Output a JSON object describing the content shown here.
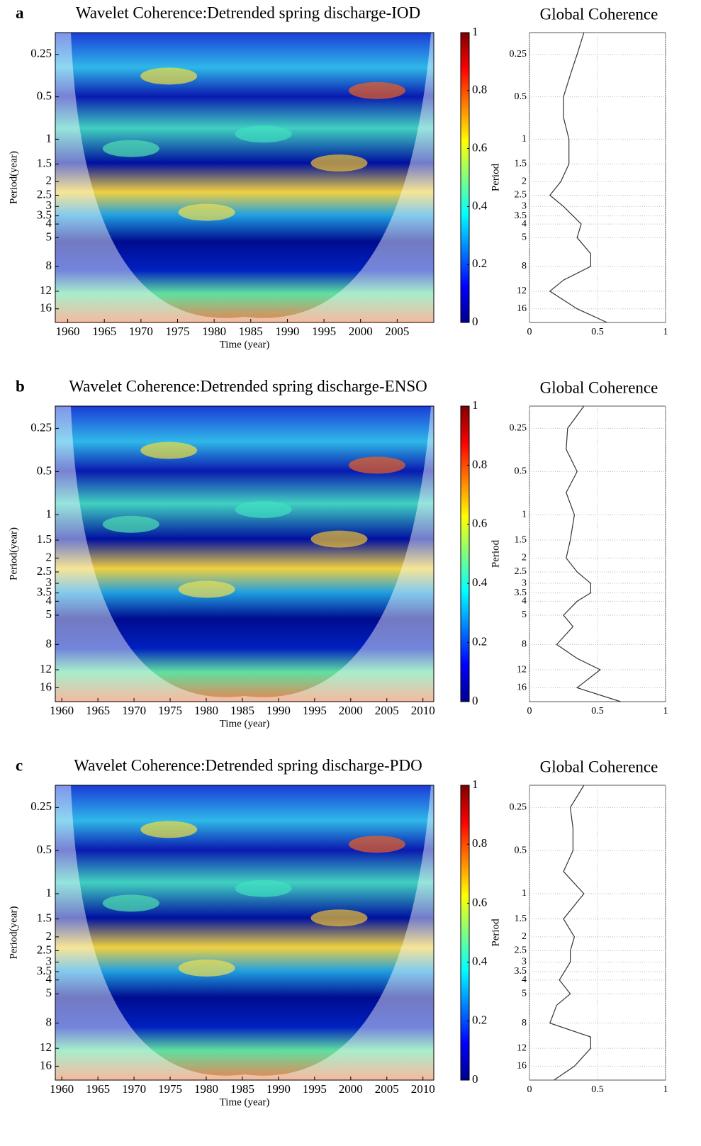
{
  "chart_data": [
    {
      "type": "heatmap",
      "panel_label": "a",
      "title": "Wavelet Coherence:Detrended spring discharge-IOD",
      "xlabel": "Time (year)",
      "ylabel": "Period(year)",
      "log_y": true,
      "colormap": "jet",
      "xlim": [
        1958.3,
        2010
      ],
      "xticks": [
        1960,
        1965,
        1970,
        1975,
        1980,
        1985,
        1990,
        1995,
        2000,
        2005
      ],
      "ylim": [
        0.175,
        20
      ],
      "yticks": [
        0.25,
        0.5,
        1,
        1.5,
        2,
        2.5,
        3,
        3.5,
        4,
        5,
        8,
        12,
        16
      ],
      "clim": [
        0,
        1
      ],
      "cticks": [
        0,
        0.2,
        0.4,
        0.6,
        0.8,
        1
      ]
    },
    {
      "type": "line",
      "title": "Global Coherence",
      "ylabel": "Period",
      "log_y": true,
      "grid": true,
      "color": "#333333",
      "xlim": [
        0,
        1
      ],
      "xticks": [
        0,
        0.5,
        1
      ],
      "ylim": [
        0.175,
        20
      ],
      "yticks": [
        0.25,
        0.5,
        1,
        1.5,
        2,
        2.5,
        3,
        3.5,
        4,
        5,
        8,
        12,
        16
      ],
      "y": [
        0.175,
        0.25,
        0.35,
        0.5,
        0.7,
        1,
        1.5,
        2,
        2.5,
        3,
        4,
        5,
        6.5,
        8,
        10,
        12,
        16,
        20
      ],
      "values": [
        0.4,
        0.35,
        0.3,
        0.25,
        0.25,
        0.29,
        0.29,
        0.23,
        0.15,
        0.25,
        0.38,
        0.35,
        0.45,
        0.45,
        0.25,
        0.15,
        0.35,
        0.57
      ]
    },
    {
      "type": "heatmap",
      "panel_label": "b",
      "title": "Wavelet Coherence:Detrended spring discharge-ENSO",
      "xlabel": "Time (year)",
      "ylabel": "Period(year)",
      "log_y": true,
      "colormap": "jet",
      "xlim": [
        1959.1,
        2011.5
      ],
      "xticks": [
        1960,
        1965,
        1970,
        1975,
        1980,
        1985,
        1990,
        1995,
        2000,
        2005,
        2010
      ],
      "ylim": [
        0.175,
        20
      ],
      "yticks": [
        0.25,
        0.5,
        1,
        1.5,
        2,
        2.5,
        3,
        3.5,
        4,
        5,
        8,
        12,
        16
      ],
      "clim": [
        0,
        1
      ],
      "cticks": [
        0,
        0.2,
        0.4,
        0.6,
        0.8,
        1
      ]
    },
    {
      "type": "line",
      "title": "Global Coherence",
      "ylabel": "Period",
      "log_y": true,
      "grid": true,
      "color": "#333333",
      "xlim": [
        0,
        1
      ],
      "xticks": [
        0,
        0.5,
        1
      ],
      "ylim": [
        0.175,
        20
      ],
      "yticks": [
        0.25,
        0.5,
        1,
        1.5,
        2,
        2.5,
        3,
        3.5,
        4,
        5,
        8,
        12,
        16
      ],
      "y": [
        0.175,
        0.25,
        0.35,
        0.5,
        0.7,
        1,
        1.5,
        2,
        2.5,
        3,
        3.5,
        4,
        5,
        6,
        8,
        10,
        12,
        16,
        20
      ],
      "values": [
        0.4,
        0.28,
        0.27,
        0.35,
        0.27,
        0.33,
        0.3,
        0.27,
        0.35,
        0.45,
        0.45,
        0.35,
        0.25,
        0.32,
        0.2,
        0.35,
        0.52,
        0.35,
        0.67
      ]
    },
    {
      "type": "heatmap",
      "panel_label": "c",
      "title": "Wavelet Coherence:Detrended spring discharge-PDO",
      "xlabel": "Time (year)",
      "ylabel": "Period(year)",
      "log_y": true,
      "colormap": "jet",
      "xlim": [
        1959.1,
        2011.5
      ],
      "xticks": [
        1960,
        1965,
        1970,
        1975,
        1980,
        1985,
        1990,
        1995,
        2000,
        2005,
        2010
      ],
      "ylim": [
        0.175,
        20
      ],
      "yticks": [
        0.25,
        0.5,
        1,
        1.5,
        2,
        2.5,
        3,
        3.5,
        4,
        5,
        8,
        12,
        16
      ],
      "clim": [
        0,
        1
      ],
      "cticks": [
        0,
        0.2,
        0.4,
        0.6,
        0.8,
        1
      ]
    },
    {
      "type": "line",
      "title": "Global Coherence",
      "ylabel": "Period",
      "log_y": true,
      "grid": true,
      "color": "#333333",
      "xlim": [
        0,
        1
      ],
      "xticks": [
        0,
        0.5,
        1
      ],
      "ylim": [
        0.175,
        20
      ],
      "yticks": [
        0.25,
        0.5,
        1,
        1.5,
        2,
        2.5,
        3,
        3.5,
        4,
        5,
        8,
        12,
        16
      ],
      "y": [
        0.175,
        0.25,
        0.35,
        0.5,
        0.7,
        1,
        1.5,
        2,
        2.5,
        3,
        4,
        5,
        6,
        8,
        10,
        12,
        16,
        20
      ],
      "values": [
        0.4,
        0.3,
        0.32,
        0.32,
        0.25,
        0.4,
        0.25,
        0.33,
        0.3,
        0.3,
        0.22,
        0.3,
        0.2,
        0.15,
        0.45,
        0.45,
        0.33,
        0.18
      ]
    }
  ]
}
